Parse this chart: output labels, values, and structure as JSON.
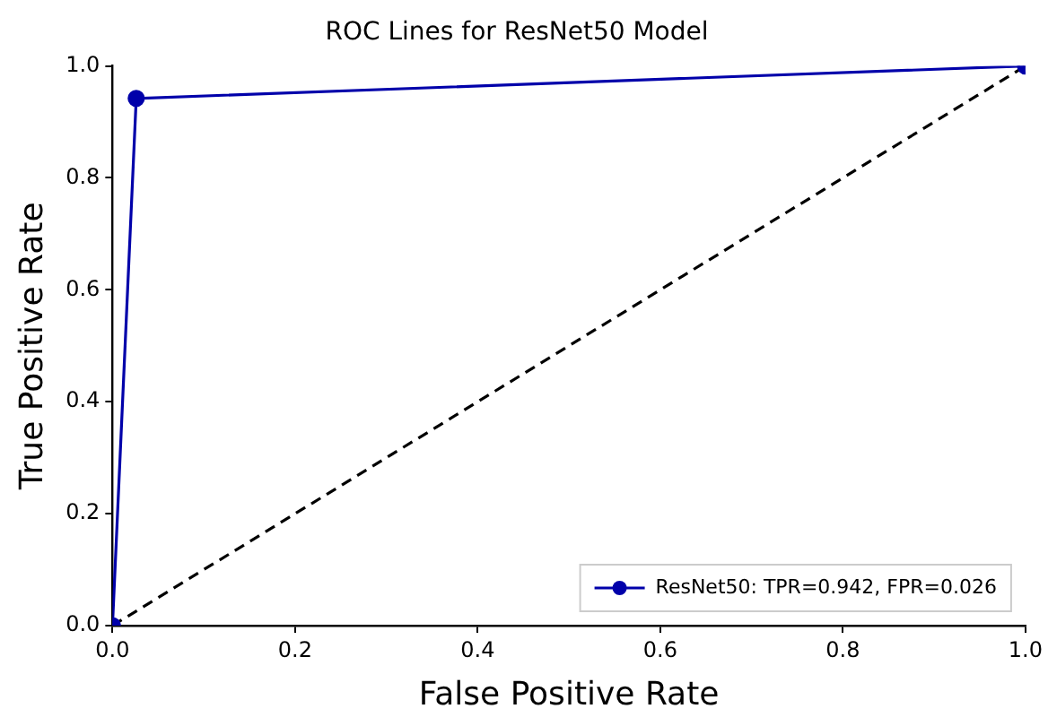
{
  "chart_data": {
    "type": "line",
    "title": "ROC Lines for ResNet50 Model",
    "xlabel": "False Positive Rate",
    "ylabel": "True Positive Rate",
    "xlim": [
      0,
      1
    ],
    "ylim": [
      0,
      1
    ],
    "xticks": [
      {
        "value": 0,
        "label": "0.0"
      },
      {
        "value": 0.2,
        "label": "0.2"
      },
      {
        "value": 0.4,
        "label": "0.4"
      },
      {
        "value": 0.6,
        "label": "0.6"
      },
      {
        "value": 0.8,
        "label": "0.8"
      },
      {
        "value": 1,
        "label": "1.0"
      }
    ],
    "yticks": [
      {
        "value": 0,
        "label": "0.0"
      },
      {
        "value": 0.2,
        "label": "0.2"
      },
      {
        "value": 0.4,
        "label": "0.4"
      },
      {
        "value": 0.6,
        "label": "0.6"
      },
      {
        "value": 0.8,
        "label": "0.8"
      },
      {
        "value": 1,
        "label": "1.0"
      }
    ],
    "grid": false,
    "legend": "bottom right",
    "series": [
      {
        "name": "ResNet50: TPR=0.942, FPR=0.026",
        "color": "#0000aa",
        "x": [
          0,
          0.026,
          1
        ],
        "values": [
          0,
          0.942,
          1
        ],
        "marker": "circle",
        "line_style": "solid"
      },
      {
        "color": "#000000",
        "x": [
          0,
          1
        ],
        "values": [
          0,
          1
        ],
        "marker": "none",
        "line_style": "dashed"
      }
    ]
  }
}
